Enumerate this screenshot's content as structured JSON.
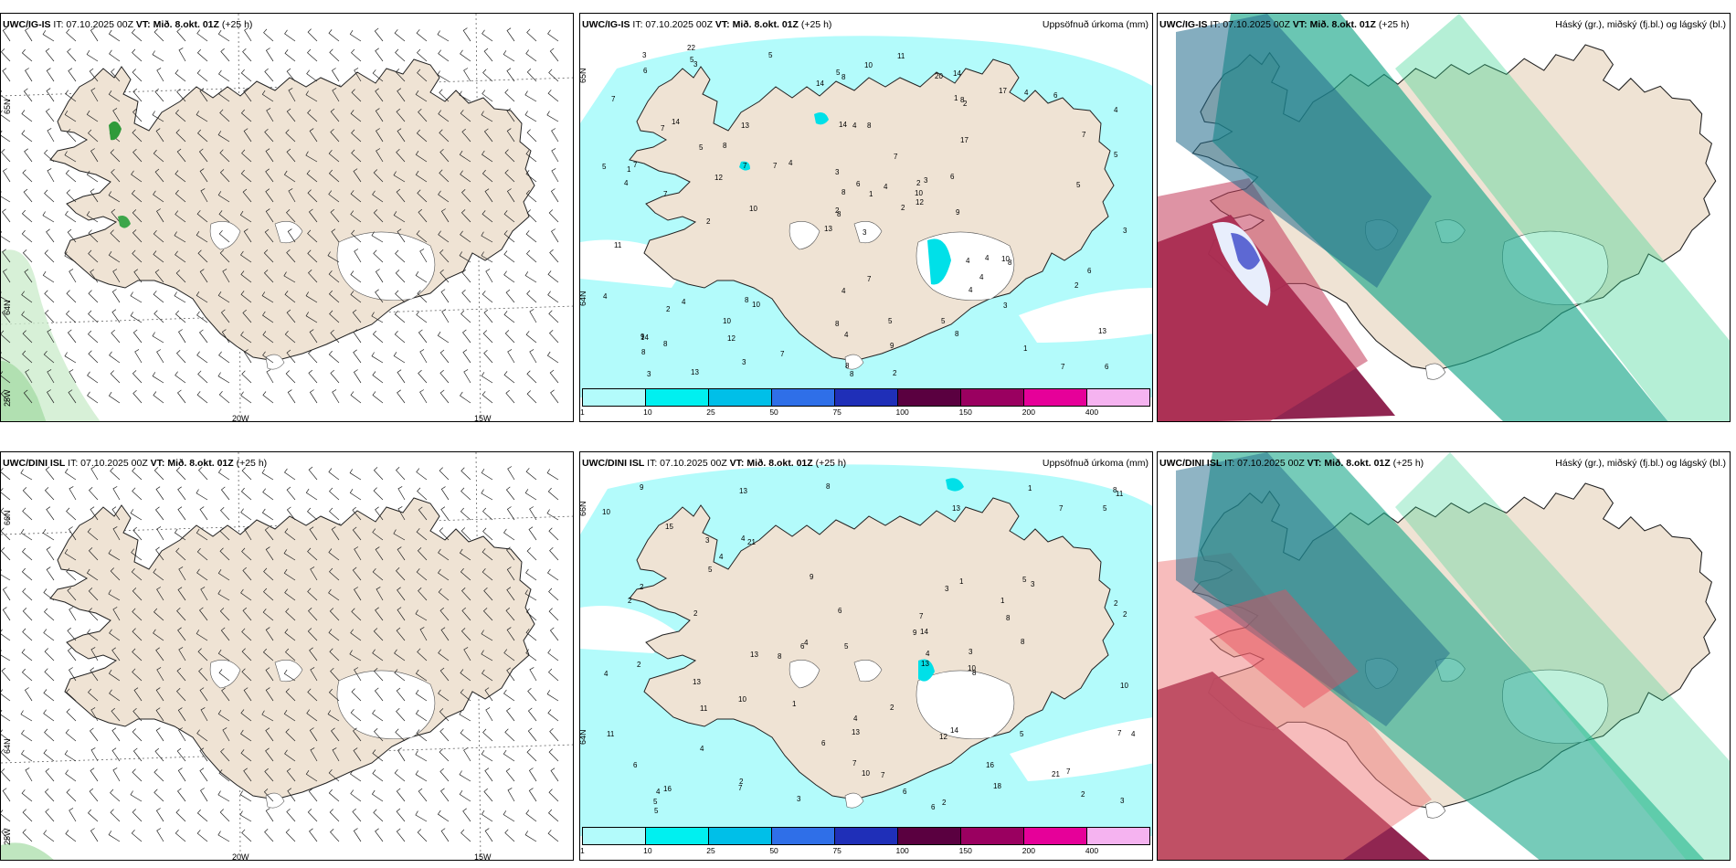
{
  "panels": {
    "r1c1": {
      "model": "UWC/IG-IS",
      "it": " IT: 07.10.2025 00Z ",
      "vt": "VT: Mið. 8.okt. 01Z",
      "lead": " (+25 h)",
      "lat_top": "65N",
      "lat_mid": "64N",
      "lat_bot": "25W",
      "lon_a": "20W",
      "lon_b": "15W"
    },
    "r1c2": {
      "model": "UWC/IG-IS",
      "it": " IT: 07.10.2025 00Z ",
      "vt": "VT: Mið. 8.okt. 01Z",
      "lead": " (+25 h)",
      "title_right": "Uppsöfnuð úrkoma (mm)",
      "lat_top": "65N",
      "lat_mid": "64N"
    },
    "r1c3": {
      "model": "UWC/IG-IS",
      "it": " IT: 07.10.2025 00Z ",
      "vt": "VT: Mið. 8.okt. 01Z",
      "lead": " (+25 h)",
      "title_right": "Háský (gr.), miðský (fj.bl.) og lágský (bl.)"
    },
    "r2c1": {
      "model": "UWC/DINI ISL",
      "it": " IT: 07.10.2025 00Z ",
      "vt": "VT: Mið. 8.okt. 01Z",
      "lead": " (+25 h)",
      "lat_top": "66N",
      "lat_mid": "64N",
      "lat_bot": "25W",
      "lon_a": "20W",
      "lon_b": "15W"
    },
    "r2c2": {
      "model": "UWC/DINI ISL",
      "it": " IT: 07.10.2025 00Z ",
      "vt": "VT: Mið. 8.okt. 01Z",
      "lead": " (+25 h)",
      "title_right": "Uppsöfnuð úrkoma (mm)",
      "lat_top": "66N",
      "lat_mid": "64N"
    },
    "r2c3": {
      "model": "UWC/DINI ISL",
      "it": " IT: 07.10.2025 00Z ",
      "vt": "VT: Mið. 8.okt. 01Z",
      "lead": " (+25 h)",
      "title_right": "Háský (gr.), miðský (fj.bl.) og lágský (bl.)"
    }
  },
  "colorbar": {
    "ticks": [
      "1",
      "10",
      "25",
      "50",
      "75",
      "100",
      "150",
      "200",
      "400"
    ],
    "colors": [
      "#b3fbfb",
      "#00f0f0",
      "#00bfe8",
      "#2f6fe8",
      "#1f2fb8",
      "#5a0040",
      "#9a0060",
      "#e60099",
      "#f5b3f0"
    ]
  },
  "colors": {
    "land": "#efe3d4",
    "precip_light": "#b3fbfb",
    "precip_mid": "#00e0e8",
    "ocean": "#ffffff"
  },
  "precip_labels_top": [
    "3",
    "7",
    "8",
    "9",
    "2",
    "10",
    "14",
    "8",
    "8",
    "2",
    "3",
    "6",
    "7",
    "4",
    "13",
    "17",
    "13",
    "14",
    "7",
    "4",
    "4",
    "8",
    "12",
    "4",
    "3",
    "8",
    "14",
    "8",
    "4",
    "4",
    "5",
    "2",
    "8",
    "8",
    "13",
    "17",
    "8",
    "7",
    "13",
    "10",
    "11",
    "7",
    "12",
    "4",
    "3",
    "5",
    "10",
    "3",
    "4",
    "12",
    "2",
    "7",
    "7",
    "4",
    "8",
    "10",
    "5",
    "3",
    "5",
    "6",
    "10",
    "10",
    "7",
    "8",
    "4",
    "22",
    "20",
    "14",
    "6",
    "4",
    "4",
    "7",
    "4",
    "7",
    "14",
    "6",
    "5",
    "11",
    "3",
    "9",
    "4",
    "8",
    "9",
    "6",
    "8",
    "5",
    "7",
    "1",
    "2",
    "5",
    "5",
    "3",
    "6",
    "3",
    "1",
    "2",
    "1",
    "8",
    "1",
    "2",
    "2",
    "5"
  ],
  "precip_labels_bottom": [
    "3",
    "6",
    "2",
    "16",
    "13",
    "15",
    "13",
    "2",
    "8",
    "9",
    "7",
    "10",
    "4",
    "13",
    "13",
    "9",
    "2",
    "7",
    "8",
    "10",
    "12",
    "11",
    "7",
    "4",
    "3",
    "13",
    "11",
    "11",
    "9",
    "8",
    "5",
    "2",
    "4",
    "5",
    "4",
    "3",
    "7",
    "6",
    "1",
    "7",
    "14",
    "8",
    "4",
    "16",
    "21",
    "14",
    "10",
    "6",
    "3",
    "7",
    "8",
    "2",
    "3",
    "5",
    "10",
    "5",
    "6",
    "6",
    "4",
    "2",
    "21",
    "18",
    "5",
    "8",
    "7",
    "5",
    "4",
    "2",
    "5",
    "3",
    "6",
    "2",
    "4",
    "2",
    "1",
    "10",
    "13",
    "2",
    "1",
    "4",
    "1"
  ]
}
